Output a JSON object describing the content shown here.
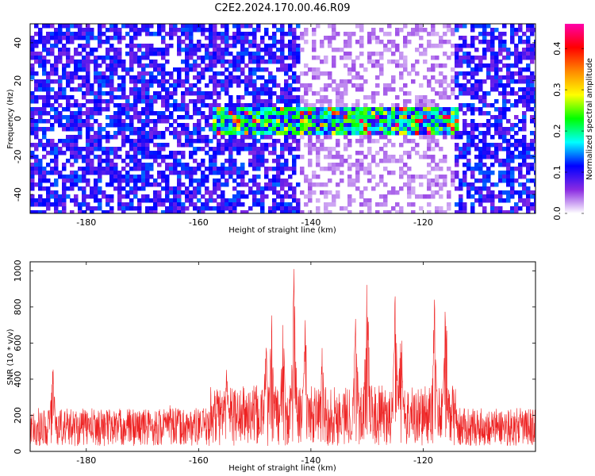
{
  "title": "C2E2.2024.170.00.46.R09",
  "colors": {
    "snr_line": "#ee2222",
    "axis": "#000000",
    "background": "#ffffff"
  },
  "chart_data": [
    {
      "type": "heatmap",
      "xlabel": "Height of straight line (km)",
      "ylabel": "Frequency (Hz)",
      "xlim": [
        -190,
        -100
      ],
      "ylim": [
        -50,
        50
      ],
      "x_ticks": [
        "-180",
        "-160",
        "-140",
        "-120"
      ],
      "y_ticks": [
        "-40",
        "-20",
        "0",
        "20",
        "40"
      ],
      "x_tick_values": [
        -180,
        -160,
        -140,
        -120
      ],
      "y_tick_values": [
        -40,
        -20,
        0,
        20,
        40
      ],
      "colorbar": {
        "label": "Normalized spectral amplitude",
        "range": [
          0,
          0.46
        ],
        "ticks": [
          "0.0",
          "0.1",
          "0.2",
          "0.3",
          "0.4"
        ],
        "tick_values": [
          0.0,
          0.1,
          0.2,
          0.3,
          0.4
        ],
        "colormap": [
          "#ffffff",
          "#8a2be2",
          "#0000ff",
          "#00ffff",
          "#00ff00",
          "#ffff00",
          "#ff8800",
          "#ff0000",
          "#ff00aa"
        ]
      },
      "signal_band": {
        "frequency_center": 0,
        "height_range": [
          -158,
          -114
        ],
        "peak_amplitude": 0.45
      },
      "low_amplitude_region": {
        "height_range": [
          -142,
          -115
        ]
      }
    },
    {
      "type": "line",
      "xlabel": "Height of straight line (km)",
      "ylabel": "SNR (10 * v/v)",
      "xlim": [
        -190,
        -100
      ],
      "ylim": [
        0,
        1050
      ],
      "x_ticks": [
        "-180",
        "-160",
        "-140",
        "-120"
      ],
      "y_ticks": [
        "0",
        "200",
        "400",
        "600",
        "800",
        "1000"
      ],
      "x_tick_values": [
        -180,
        -160,
        -140,
        -120
      ],
      "y_tick_values": [
        0,
        200,
        400,
        600,
        800,
        1000
      ],
      "peaks": [
        {
          "x": -186,
          "y": 545
        },
        {
          "x": -165,
          "y": 300
        },
        {
          "x": -155,
          "y": 495
        },
        {
          "x": -148,
          "y": 680
        },
        {
          "x": -147,
          "y": 760
        },
        {
          "x": -145,
          "y": 760
        },
        {
          "x": -143,
          "y": 1045
        },
        {
          "x": -141,
          "y": 740
        },
        {
          "x": -138,
          "y": 610
        },
        {
          "x": -132,
          "y": 830
        },
        {
          "x": -130,
          "y": 1050
        },
        {
          "x": -125,
          "y": 885
        },
        {
          "x": -124,
          "y": 860
        },
        {
          "x": -118,
          "y": 880
        },
        {
          "x": -116,
          "y": 900
        }
      ]
    }
  ]
}
